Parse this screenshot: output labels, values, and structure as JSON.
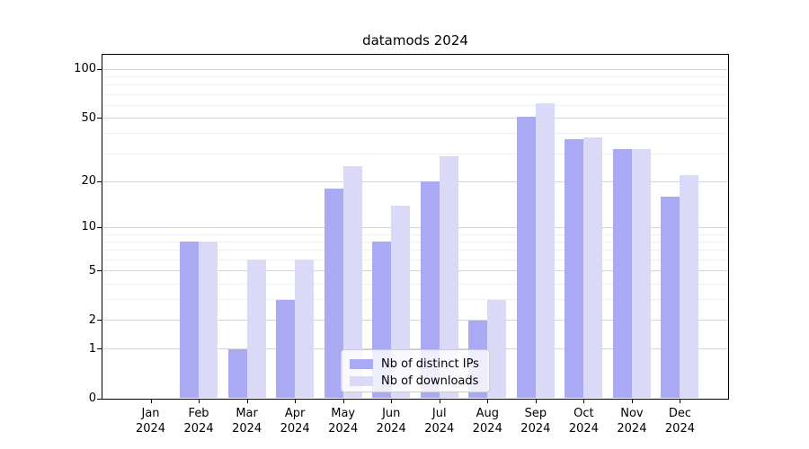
{
  "title": "datamods 2024",
  "chart_data": {
    "type": "bar",
    "title": "datamods 2024",
    "scale": "log10(1+value) (symlog-like), baseline 0",
    "xlabel": "",
    "ylabel": "",
    "ylim": [
      0,
      122
    ],
    "grid": "horizontal, major + faint minor lines",
    "legend_position": "lower center",
    "categories": [
      "Jan 2024",
      "Feb 2024",
      "Mar 2024",
      "Apr 2024",
      "May 2024",
      "Jun 2024",
      "Jul 2024",
      "Aug 2024",
      "Sep 2024",
      "Oct 2024",
      "Nov 2024",
      "Dec 2024"
    ],
    "series": [
      {
        "name": "Nb of distinct IPs",
        "color": "#a9a9f4",
        "values": [
          0,
          8,
          1,
          3,
          18,
          8,
          20,
          2,
          51,
          37,
          32,
          16
        ]
      },
      {
        "name": "Nb of downloads",
        "color": "#dadaf8",
        "values": [
          0,
          8,
          6,
          6,
          25,
          14,
          29,
          3,
          62,
          38,
          32,
          22
        ]
      }
    ],
    "ytick_values": [
      0,
      1,
      2,
      5,
      10,
      20,
      50,
      100
    ],
    "ytick_labels": [
      "0",
      "1",
      "2",
      "5",
      "10",
      "20",
      "50",
      "100"
    ],
    "grid_major_values": [
      1,
      2,
      5,
      10,
      20,
      50,
      100
    ],
    "grid_minor_values": [
      3,
      4,
      6,
      7,
      8,
      9,
      30,
      40,
      60,
      70,
      80,
      90
    ],
    "colors": {
      "grid_major": "#d4d4d4",
      "grid_minor": "#efefef",
      "spine": "#000000",
      "background": "#ffffff"
    }
  }
}
